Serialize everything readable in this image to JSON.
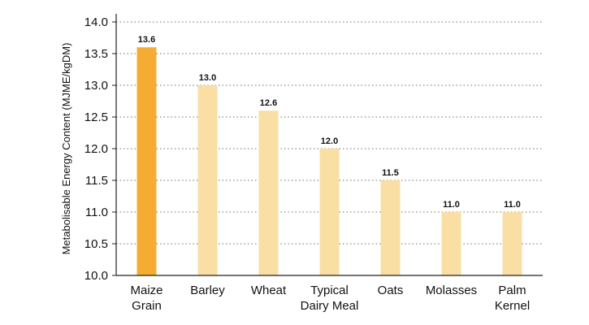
{
  "chart_data": {
    "type": "bar",
    "title": "",
    "xlabel": "",
    "ylabel": "Metabolisable Energy Content (MJME/kgDM)",
    "categories": [
      [
        "Maize",
        "Grain"
      ],
      [
        "Barley"
      ],
      [
        "Wheat"
      ],
      [
        "Typical",
        "Dairy Meal"
      ],
      [
        "Oats"
      ],
      [
        "Molasses"
      ],
      [
        "Palm",
        "Kernel"
      ]
    ],
    "values": [
      13.6,
      13.0,
      12.6,
      12.0,
      11.5,
      11.0,
      11.0
    ],
    "value_labels": [
      "13.6",
      "13.0",
      "12.6",
      "12.0",
      "11.5",
      "11.0",
      "11.0"
    ],
    "ylim": [
      10.0,
      14.0
    ],
    "yticks": [
      "10.0",
      "10.5",
      "11.0",
      "11.5",
      "12.0",
      "12.5",
      "13.0",
      "13.5",
      "14.0"
    ],
    "grid": "horizontal dotted",
    "colors": {
      "highlight": "#F5AC33",
      "bar": "#FADFA5",
      "grid": "#8a8a8a",
      "axis": "#222222"
    },
    "highlight_index": 0
  }
}
